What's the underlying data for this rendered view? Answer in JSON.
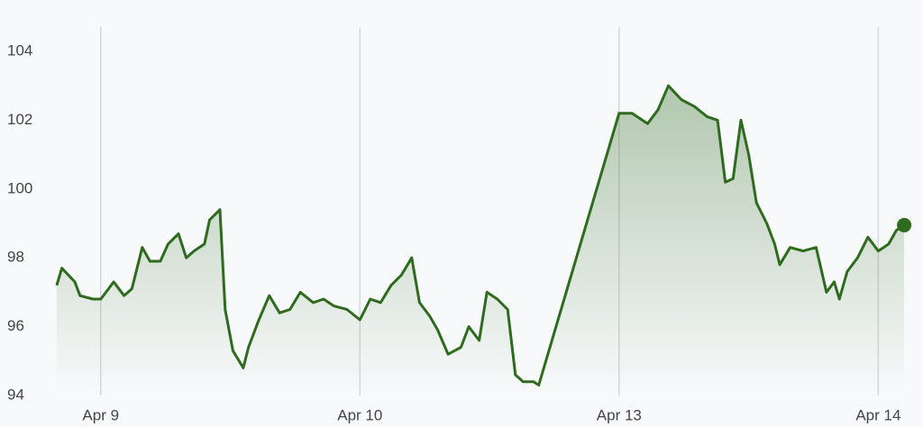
{
  "chart_data": {
    "type": "line",
    "x": [
      0.83,
      0.85,
      0.9,
      0.92,
      0.97,
      1.0,
      1.03,
      1.05,
      1.09,
      1.12,
      1.16,
      1.19,
      1.23,
      1.26,
      1.3,
      1.33,
      1.36,
      1.4,
      1.42,
      1.46,
      1.48,
      1.51,
      1.55,
      1.57,
      1.61,
      1.65,
      1.69,
      1.73,
      1.77,
      1.82,
      1.86,
      1.9,
      1.95,
      2.0,
      2.04,
      2.08,
      2.12,
      2.16,
      2.2,
      2.23,
      2.27,
      2.3,
      2.34,
      2.39,
      2.42,
      2.46,
      2.49,
      2.53,
      2.57,
      2.6,
      2.63,
      2.67,
      2.69,
      3.0,
      3.05,
      3.11,
      3.15,
      3.19,
      3.24,
      3.29,
      3.34,
      3.38,
      3.41,
      3.44,
      3.47,
      3.5,
      3.53,
      3.57,
      3.6,
      3.62,
      3.66,
      3.71,
      3.76,
      3.8,
      3.83,
      3.85,
      3.88,
      3.92,
      3.96,
      4.0,
      4.04,
      4.07,
      4.1
    ],
    "values": [
      97.2,
      97.7,
      97.3,
      96.9,
      96.8,
      96.8,
      97.1,
      97.3,
      96.9,
      97.1,
      98.3,
      97.9,
      97.9,
      98.4,
      98.7,
      98.0,
      98.2,
      98.4,
      99.1,
      99.4,
      96.5,
      95.3,
      94.8,
      95.4,
      96.2,
      96.9,
      96.4,
      96.5,
      97.0,
      96.7,
      96.8,
      96.6,
      96.5,
      96.2,
      96.8,
      96.7,
      97.2,
      97.5,
      98.0,
      96.7,
      96.3,
      95.9,
      95.2,
      95.4,
      96.0,
      95.6,
      97.0,
      96.8,
      96.5,
      94.6,
      94.4,
      94.4,
      94.3,
      102.2,
      102.2,
      101.9,
      102.3,
      103.0,
      102.6,
      102.4,
      102.1,
      102.0,
      100.2,
      100.3,
      102.0,
      101.0,
      99.6,
      99.0,
      98.4,
      97.8,
      98.3,
      98.2,
      98.3,
      97.0,
      97.3,
      96.8,
      97.6,
      98.0,
      98.6,
      98.2,
      98.4,
      98.8,
      98.95
    ],
    "color": "#2f6b1f",
    "xlim": [
      0.82,
      4.11
    ],
    "xticks": [
      {
        "value": 1,
        "label": "Apr 9"
      },
      {
        "value": 2,
        "label": "Apr 10"
      },
      {
        "value": 3,
        "label": "Apr 13"
      },
      {
        "value": 4,
        "label": "Apr 14"
      }
    ],
    "ylim": [
      94,
      104
    ],
    "yticks": [
      94,
      96,
      98,
      100,
      102,
      104
    ],
    "grid": true
  }
}
